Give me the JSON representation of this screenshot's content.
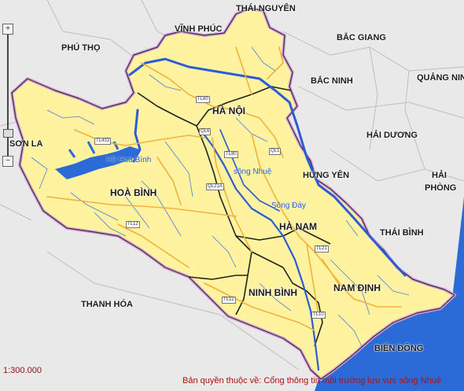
{
  "provinces": {
    "thai_nguyen": "THÁI NGUYÊN",
    "vinh_phuc": "VĨNH PHÚC",
    "bac_giang": "BẮC GIANG",
    "phu_tho": "PHÚ THỌ",
    "bac_ninh": "BẮC NINH",
    "quang_ninh": "QUẢNG NIN",
    "ha_noi": "HÀ NỘI",
    "son_la": "SƠN LA",
    "hai_duong": "HẢI DƯƠNG",
    "hung_yen": "HƯNG YÊN",
    "hai_phong_1": "HẢI",
    "hai_phong_2": "PHÒNG",
    "hoa_binh": "HOÀ BÌNH",
    "ha_nam": "HÀ NAM",
    "thai_binh": "THÁI BÌNH",
    "thanh_hoa": "THANH HÓA",
    "ninh_binh": "NINH BÌNH",
    "nam_dinh": "NAM ĐỊNH",
    "bien_dong": "BIỂN ĐÔNG"
  },
  "water": {
    "ho_hoa_binh": "Hồ Hoà Bình",
    "song_nhue": "sông Nhuệ",
    "song_day": "Sông Đáy"
  },
  "roads": {
    "tl433": "TL433",
    "tl80": "TL80",
    "ql6": "QL6",
    "tl80b": "TL80",
    "ql1": "QL1",
    "ql21a": "QL21A",
    "tl12": "TL12",
    "tl21": "TL21",
    "tl12b": "TL12",
    "tl10": "TL10"
  },
  "scale": "1:300.000",
  "copyright": "Bản quyền thuộc về: Cổng thông tin môi trường lưu vực sông Nhuệ",
  "zoom": {
    "plus": "+",
    "minus": "−",
    "level": 0.85
  },
  "colors": {
    "basin": "#fff3a0",
    "outside": "#e9e9e9",
    "sea": "#2a6bd8",
    "river": "#2b5cd6",
    "border": "#d9a0e0",
    "road": "#f3b13a"
  }
}
